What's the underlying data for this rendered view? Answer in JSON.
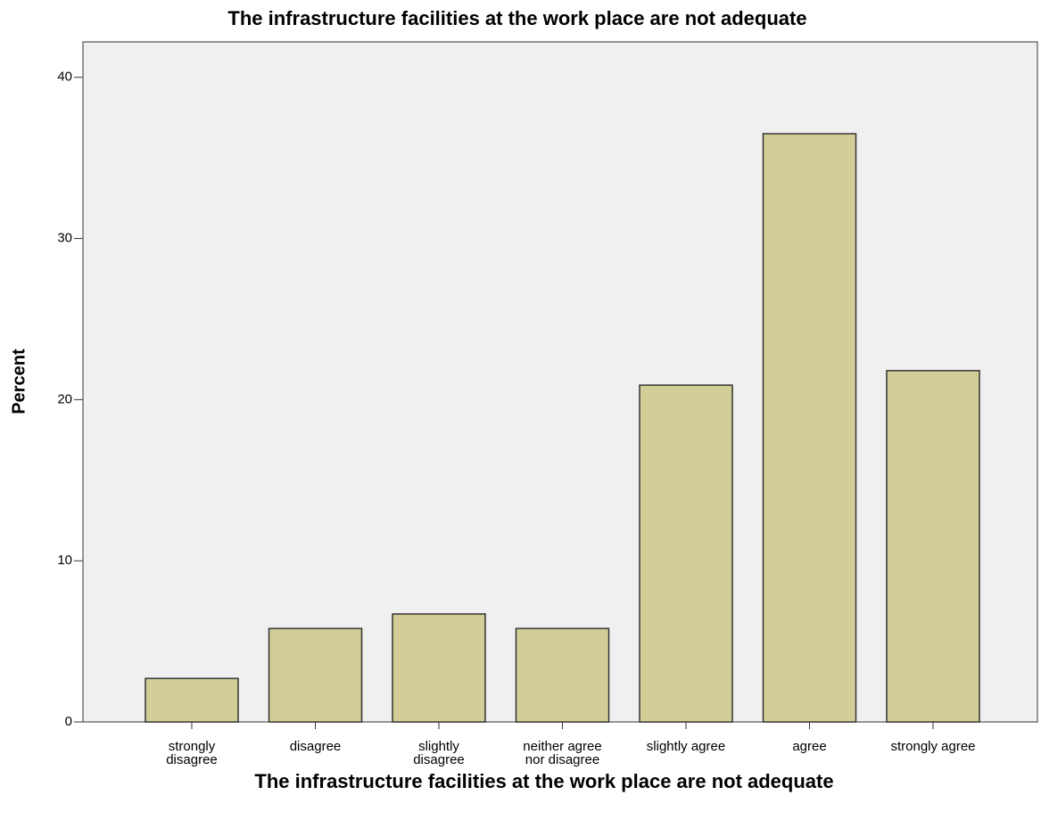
{
  "chart_data": {
    "type": "bar",
    "title": "The infrastructure facilities at the work place are not adequate",
    "x_label": "The infrastructure facilities at the work place are not adequate",
    "y_label": "Percent",
    "categories": [
      "strongly\ndisagree",
      "disagree",
      "slightly\ndisagree",
      "neither agree\nnor disagree",
      "slightly agree",
      "agree",
      "strongly agree"
    ],
    "values": [
      2.7,
      5.8,
      6.7,
      5.8,
      20.9,
      36.5,
      21.8
    ],
    "color": "#d3ce97",
    "ylim": [
      0,
      42.2
    ],
    "yticks": [
      0,
      10,
      20,
      30,
      40
    ],
    "grid": false
  }
}
